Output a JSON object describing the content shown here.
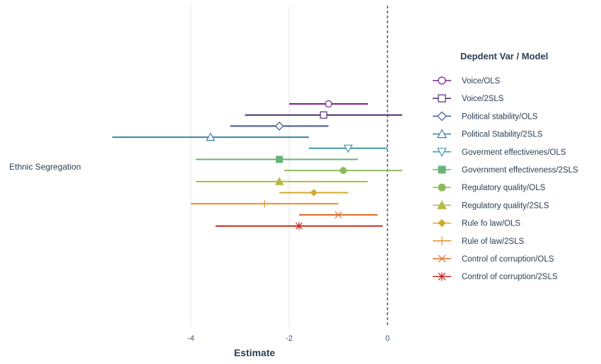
{
  "chart_data": {
    "type": "forest",
    "xlabel": "Estimate",
    "ylabel": "",
    "xlim": [
      -5.6,
      0.3
    ],
    "x_ticks": [
      -4,
      -2,
      0
    ],
    "x_tick_labels": [
      "-4",
      "-2",
      "0"
    ],
    "reference_line": 0,
    "reference_line_style": "dashed",
    "grid": "vertical major lines only",
    "category": "Ethnic Segregation",
    "legend": {
      "title": "Depdent Var / Model",
      "position": "right"
    },
    "series": [
      {
        "name": "Voice/OLS",
        "estimate": -1.2,
        "low": -2.0,
        "high": -0.4,
        "color": "#7b1f8c",
        "marker": "circle-open"
      },
      {
        "name": "Voice/2SLS",
        "estimate": -1.3,
        "low": -2.9,
        "high": 0.3,
        "color": "#4b2c74",
        "marker": "square-open"
      },
      {
        "name": "Political stability/OLS",
        "estimate": -2.2,
        "low": -3.2,
        "high": -1.2,
        "color": "#3b5b8c",
        "marker": "diamond-open"
      },
      {
        "name": "Political Stability/2SLS",
        "estimate": -3.6,
        "low": -5.6,
        "high": -1.6,
        "color": "#3a82a5",
        "marker": "triangle-up-open"
      },
      {
        "name": "Goverment effectivenes/OLS",
        "estimate": -0.8,
        "low": -1.6,
        "high": 0.0,
        "color": "#3e9aa6",
        "marker": "triangle-down-open"
      },
      {
        "name": "Government effectiveness/2SLS",
        "estimate": -2.2,
        "low": -3.9,
        "high": -0.6,
        "color": "#6bb27a",
        "marker": "square"
      },
      {
        "name": "Regulatory quality/OLS",
        "estimate": -0.9,
        "low": -2.1,
        "high": 0.3,
        "color": "#8cbc5a",
        "marker": "circle"
      },
      {
        "name": "Regulatory quality/2SLS",
        "estimate": -2.2,
        "low": -3.9,
        "high": -0.4,
        "color": "#b5b941",
        "marker": "triangle-up"
      },
      {
        "name": "Rule fo law/OLS",
        "estimate": -1.5,
        "low": -2.2,
        "high": -0.8,
        "color": "#d1a92c",
        "marker": "diamond"
      },
      {
        "name": "Rule of law/2SLS",
        "estimate": -2.5,
        "low": -4.0,
        "high": -1.0,
        "color": "#e0922a",
        "marker": "plus"
      },
      {
        "name": "Control of corruption/OLS",
        "estimate": -1.0,
        "low": -1.8,
        "high": -0.2,
        "color": "#df6a28",
        "marker": "cross"
      },
      {
        "name": "Control of corruption/2SLS",
        "estimate": -1.8,
        "low": -3.5,
        "high": -0.1,
        "color": "#c8281e",
        "marker": "asterisk"
      }
    ]
  }
}
